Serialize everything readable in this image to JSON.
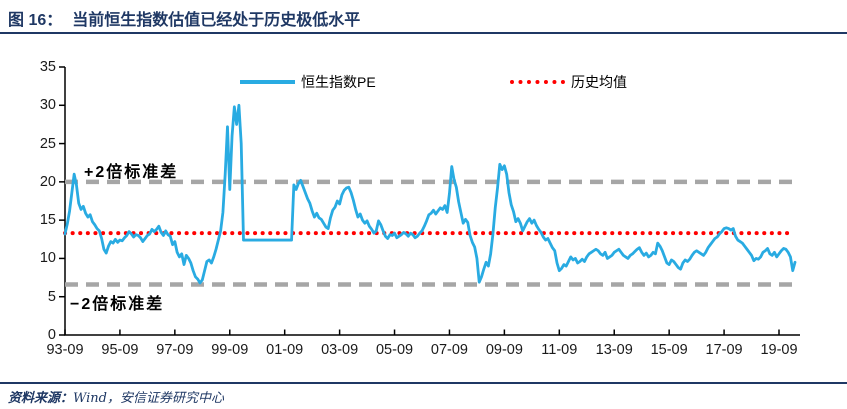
{
  "title": {
    "prefix": "图 16：",
    "text": "当前恒生指数估值已经处于历史极低水平"
  },
  "footer": {
    "source_label": "资料来源：",
    "source_text": "Wind，安信证券研究中心"
  },
  "legend": [
    {
      "label": "恒生指数PE",
      "color": "#29ABE2",
      "style": "solid"
    },
    {
      "label": "历史均值",
      "color": "#FF0000",
      "style": "dotted"
    }
  ],
  "annotations": {
    "upper": "+2倍标准差",
    "lower": "−2倍标准差"
  },
  "colors": {
    "title_navy": "#1F3864",
    "series_blue": "#29ABE2",
    "mean_red": "#FF0000",
    "band_gray": "#A6A6A6",
    "axis_black": "#000000"
  },
  "chart_data": {
    "type": "line",
    "title": "恒生指数PE",
    "xlabel": "",
    "ylabel": "",
    "ylim": [
      0,
      35
    ],
    "grid": false,
    "legend_position": "top",
    "y_ticks": [
      0,
      5,
      10,
      15,
      20,
      25,
      30,
      35
    ],
    "x_tick_labels": [
      "93-09",
      "95-09",
      "97-09",
      "99-09",
      "01-09",
      "03-09",
      "05-09",
      "07-09",
      "09-09",
      "11-09",
      "13-09",
      "15-09",
      "17-09",
      "19-09"
    ],
    "reference_lines": [
      {
        "name": "历史均值",
        "value": 13.3,
        "color": "#FF0000",
        "style": "dotted"
      },
      {
        "name": "+2倍标准差",
        "value": 20.0,
        "color": "#A6A6A6",
        "style": "dashed"
      },
      {
        "name": "-2倍标准差",
        "value": 6.6,
        "color": "#A6A6A6",
        "style": "dashed"
      }
    ],
    "series": [
      {
        "name": "恒生指数PE",
        "color": "#29ABE2",
        "start": "1993-09",
        "freq": "monthly",
        "values": [
          13.2,
          14.5,
          16.2,
          18.6,
          21.0,
          19.6,
          17.2,
          16.4,
          16.8,
          15.9,
          15.4,
          15.7,
          14.8,
          14.4,
          13.9,
          13.6,
          12.6,
          11.2,
          10.7,
          11.6,
          12.2,
          12.0,
          12.5,
          12.1,
          12.4,
          12.3,
          12.7,
          13.0,
          13.5,
          13.2,
          12.8,
          13.1,
          13.0,
          12.7,
          12.2,
          12.6,
          13.0,
          13.2,
          13.8,
          13.5,
          13.8,
          14.2,
          13.4,
          13.0,
          13.6,
          13.1,
          12.9,
          11.8,
          12.2,
          10.8,
          10.2,
          10.6,
          9.2,
          10.4,
          10.0,
          9.4,
          8.4,
          7.6,
          7.3,
          6.8,
          7.2,
          8.4,
          9.6,
          9.8,
          9.4,
          10.2,
          11.2,
          12.4,
          13.6,
          16.0,
          21.0,
          27.2,
          19.0,
          26.0,
          29.8,
          27.5,
          30.0,
          25.0,
          12.4,
          12.4,
          12.4,
          12.4,
          12.4,
          12.4,
          12.4,
          12.4,
          12.4,
          12.4,
          12.4,
          12.4,
          12.4,
          12.4,
          12.4,
          12.4,
          12.4,
          12.4,
          12.4,
          12.4,
          12.4,
          12.4,
          19.6,
          19.0,
          19.8,
          20.2,
          19.4,
          18.6,
          17.8,
          17.2,
          16.2,
          15.4,
          15.9,
          15.3,
          15.1,
          14.6,
          14.1,
          13.9,
          15.3,
          16.3,
          16.7,
          17.5,
          17.1,
          18.3,
          18.9,
          19.2,
          19.3,
          18.6,
          17.6,
          16.4,
          15.4,
          15.8,
          15.0,
          14.6,
          14.9,
          14.2,
          13.8,
          13.3,
          13.6,
          14.9,
          14.4,
          13.6,
          12.9,
          12.6,
          13.1,
          13.0,
          13.3,
          12.7,
          12.9,
          13.1,
          13.4,
          13.2,
          12.9,
          13.3,
          13.1,
          12.7,
          12.9,
          13.3,
          13.6,
          14.2,
          14.9,
          15.7,
          15.9,
          16.3,
          15.8,
          16.2,
          16.6,
          16.4,
          16.9,
          16.0,
          18.5,
          22.0,
          20.3,
          19.3,
          17.4,
          16.0,
          14.6,
          15.1,
          14.7,
          13.0,
          12.1,
          11.5,
          10.0,
          6.9,
          7.6,
          8.6,
          9.5,
          9.0,
          10.6,
          13.2,
          16.6,
          19.2,
          22.3,
          21.6,
          22.1,
          21.0,
          18.6,
          17.0,
          16.1,
          14.8,
          15.2,
          14.6,
          13.6,
          14.2,
          14.8,
          15.2,
          14.6,
          15.0,
          14.3,
          13.8,
          13.4,
          12.8,
          12.4,
          12.6,
          12.0,
          11.4,
          11.0,
          9.4,
          8.4,
          8.7,
          9.2,
          9.0,
          9.6,
          10.2,
          9.8,
          10.0,
          9.4,
          9.6,
          9.9,
          9.6,
          10.2,
          10.6,
          10.8,
          11.0,
          11.2,
          11.0,
          10.6,
          10.4,
          10.8,
          10.0,
          10.2,
          10.4,
          10.8,
          11.0,
          11.2,
          10.8,
          10.4,
          10.2,
          10.0,
          10.4,
          10.6,
          10.9,
          11.2,
          11.4,
          10.8,
          10.4,
          10.7,
          10.2,
          10.4,
          10.8,
          10.6,
          12.0,
          11.6,
          11.0,
          10.2,
          9.4,
          9.2,
          9.8,
          9.6,
          9.2,
          8.8,
          8.6,
          9.4,
          9.8,
          9.6,
          9.9,
          10.4,
          10.8,
          11.0,
          10.8,
          10.6,
          10.4,
          10.8,
          11.4,
          11.8,
          12.2,
          12.6,
          12.8,
          13.2,
          13.5,
          13.9,
          14.0,
          13.9,
          13.7,
          13.9,
          12.9,
          12.4,
          12.2,
          12.0,
          11.6,
          11.2,
          10.8,
          10.4,
          9.7,
          10.0,
          9.9,
          10.2,
          10.8,
          11.0,
          11.3,
          10.6,
          10.4,
          10.8,
          10.2,
          10.6,
          11.0,
          11.3,
          11.2,
          10.8,
          10.2,
          8.4,
          9.5
        ]
      }
    ]
  }
}
